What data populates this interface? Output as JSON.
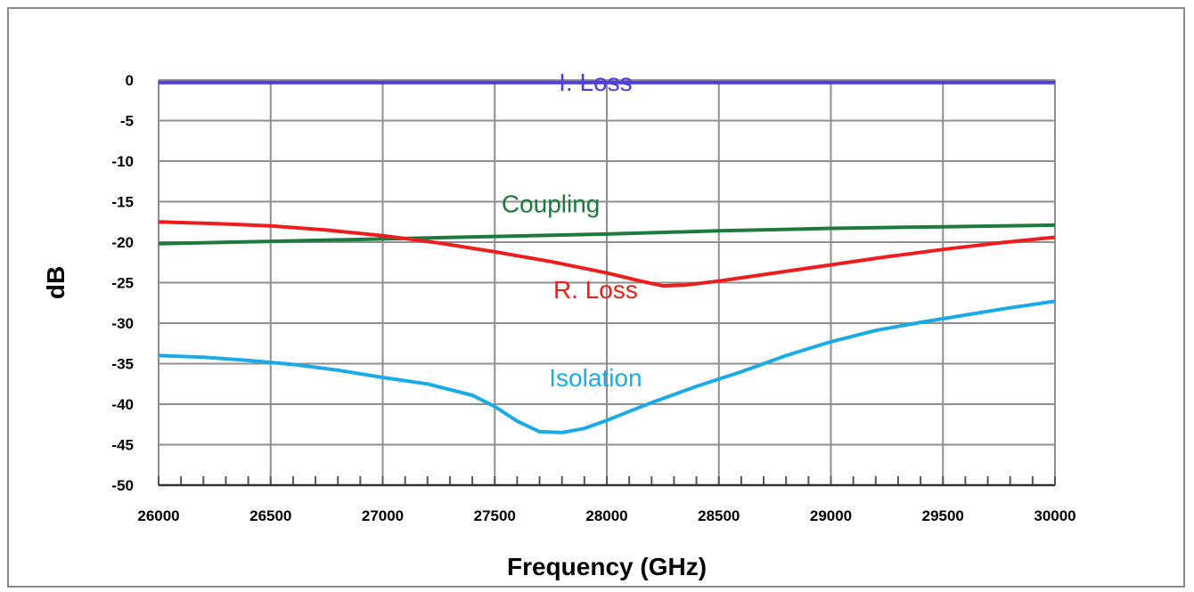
{
  "chart_data": {
    "type": "line",
    "xlabel": "Frequency (GHz)",
    "ylabel": "dB",
    "xlim": [
      26000,
      30000
    ],
    "ylim": [
      -50,
      0
    ],
    "xticks": [
      26000,
      26500,
      27000,
      27500,
      28000,
      28500,
      29000,
      29500,
      30000
    ],
    "yticks": [
      0,
      -5,
      -10,
      -15,
      -20,
      -25,
      -30,
      -35,
      -40,
      -45,
      -50
    ],
    "grid": true,
    "legend": "none",
    "series": [
      {
        "name": "I. Loss",
        "color": "#4B3FE0",
        "label_at": [
          27950,
          -1.3
        ],
        "x": [
          26000,
          30000
        ],
        "y": [
          -0.3,
          -0.3
        ]
      },
      {
        "name": "Coupling",
        "color": "#1E7A3C",
        "label_at": [
          27750,
          -16.3
        ],
        "x": [
          26000,
          26500,
          27000,
          27500,
          28000,
          28500,
          29000,
          29500,
          30000
        ],
        "y": [
          -20.2,
          -19.9,
          -19.6,
          -19.3,
          -19.0,
          -18.6,
          -18.3,
          -18.1,
          -17.9
        ]
      },
      {
        "name": "R. Loss",
        "color": "#EE1C1C",
        "label_at": [
          27950,
          -26.9
        ],
        "x": [
          26000,
          26250,
          26500,
          26750,
          27000,
          27250,
          27500,
          27750,
          28000,
          28150,
          28250,
          28350,
          28500,
          28750,
          29000,
          29250,
          29500,
          29750,
          30000
        ],
        "y": [
          -17.5,
          -17.7,
          -18.0,
          -18.5,
          -19.2,
          -20.1,
          -21.2,
          -22.4,
          -23.8,
          -24.8,
          -25.4,
          -25.3,
          -24.8,
          -23.8,
          -22.8,
          -21.8,
          -20.9,
          -20.1,
          -19.4
        ]
      },
      {
        "name": "Isolation",
        "color": "#1AAAE8",
        "label_at": [
          27950,
          -37.8
        ],
        "x": [
          26000,
          26200,
          26400,
          26600,
          26800,
          27000,
          27200,
          27400,
          27500,
          27600,
          27700,
          27800,
          27900,
          28000,
          28200,
          28400,
          28600,
          28800,
          29000,
          29200,
          29400,
          29600,
          29800,
          30000
        ],
        "y": [
          -34.0,
          -34.2,
          -34.6,
          -35.1,
          -35.8,
          -36.7,
          -37.5,
          -38.9,
          -40.3,
          -42.1,
          -43.4,
          -43.5,
          -43.0,
          -42.0,
          -39.8,
          -37.8,
          -36.0,
          -34.0,
          -32.3,
          -30.9,
          -29.9,
          -29.0,
          -28.1,
          -27.3
        ]
      }
    ]
  }
}
